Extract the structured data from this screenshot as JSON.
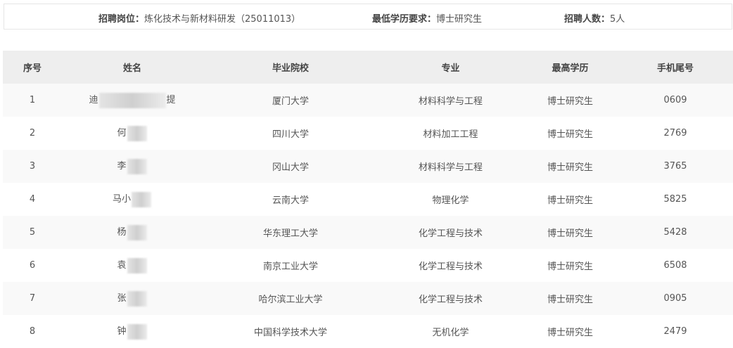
{
  "info": {
    "position_label": "招聘岗位：",
    "position_value": "炼化技术与新材料研发（25011013）",
    "education_label": "最低学历要求：",
    "education_value": "博士研究生",
    "count_label": "招聘人数：",
    "count_value": "5人"
  },
  "table": {
    "headers": [
      "序号",
      "姓名",
      "毕业院校",
      "专业",
      "最高学历",
      "手机尾号"
    ],
    "rows": [
      {
        "no": "1",
        "name_prefix": "迪",
        "name_suffix": "提",
        "school": "厦门大学",
        "major": "材料科学与工程",
        "degree": "博士研究生",
        "phone": "0609"
      },
      {
        "no": "2",
        "name_prefix": "何",
        "name_suffix": "",
        "school": "四川大学",
        "major": "材料加工工程",
        "degree": "博士研究生",
        "phone": "2769"
      },
      {
        "no": "3",
        "name_prefix": "李",
        "name_suffix": "",
        "school": "冈山大学",
        "major": "材料科学与工程",
        "degree": "博士研究生",
        "phone": "3765"
      },
      {
        "no": "4",
        "name_prefix": "马小",
        "name_suffix": "",
        "school": "云南大学",
        "major": "物理化学",
        "degree": "博士研究生",
        "phone": "5825"
      },
      {
        "no": "5",
        "name_prefix": "杨",
        "name_suffix": "",
        "school": "华东理工大学",
        "major": "化学工程与技术",
        "degree": "博士研究生",
        "phone": "5428"
      },
      {
        "no": "6",
        "name_prefix": "袁",
        "name_suffix": "",
        "school": "南京工业大学",
        "major": "化学工程与技术",
        "degree": "博士研究生",
        "phone": "6508"
      },
      {
        "no": "7",
        "name_prefix": "张",
        "name_suffix": "",
        "school": "哈尔滨工业大学",
        "major": "化学工程与技术",
        "degree": "博士研究生",
        "phone": "0905"
      },
      {
        "no": "8",
        "name_prefix": "钟",
        "name_suffix": "",
        "school": "中国科学技术大学",
        "major": "无机化学",
        "degree": "博士研究生",
        "phone": "2479"
      }
    ]
  }
}
